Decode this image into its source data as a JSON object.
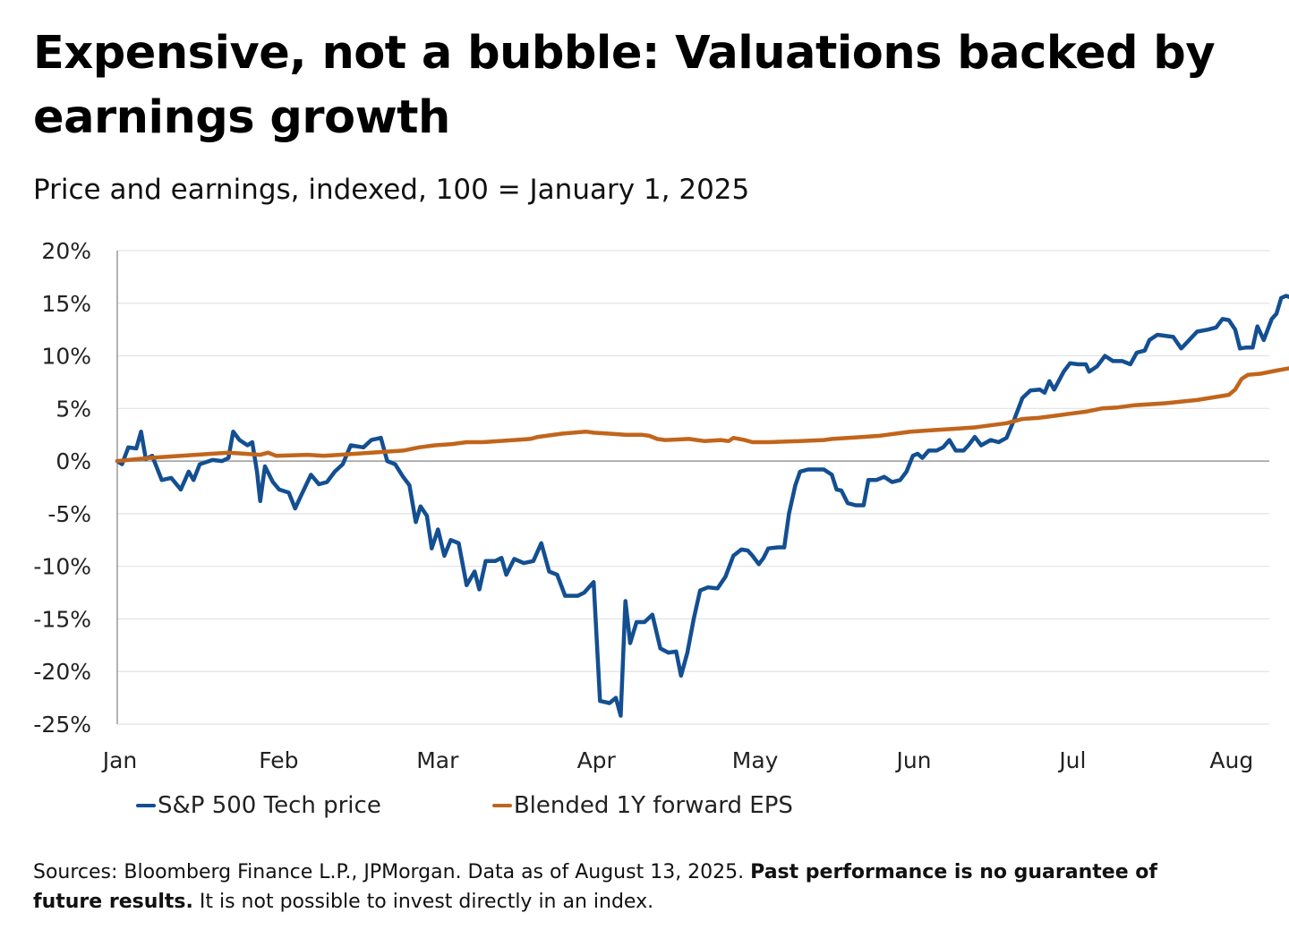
{
  "title": "Expensive, not a bubble: Valuations backed by earnings growth",
  "subtitle": "Price and earnings, indexed, 100 = January 1, 2025",
  "legend": {
    "series1_label": "S&P 500 Tech price",
    "series2_label": "Blended 1Y forward EPS"
  },
  "footer": {
    "sources": "Sources: Bloomberg Finance L.P., JPMorgan. Data as of August 13, 2025. ",
    "disclaimer_bold": "Past performance is no guarantee of future results.",
    "disclaimer_rest": " It is not possible to invest directly in an index."
  },
  "colors": {
    "series1": "#134f91",
    "series2": "#c1651c",
    "gridline": "#e2e2e2",
    "zero_line": "#9a9a9a",
    "axis": "#9a9a9a",
    "text": "#222222"
  },
  "chart_data": {
    "type": "line",
    "title": "Expensive, not a bubble: Valuations backed by earnings growth",
    "subtitle": "Price and earnings, indexed, 100 = January 1, 2025",
    "xlabel": "",
    "ylabel": "",
    "x_unit": "months elapsed since January 1, 2025",
    "xlim": [
      0,
      7.45
    ],
    "ylim": [
      -25,
      20
    ],
    "grid": true,
    "legend_position": "bottom-left",
    "y_ticks": [
      20,
      15,
      10,
      5,
      0,
      -5,
      -10,
      -15,
      -20,
      -25
    ],
    "y_tick_labels": [
      "20%",
      "15%",
      "10%",
      "5%",
      "0%",
      "-5%",
      "-10%",
      "-15%",
      "-20%",
      "-25%"
    ],
    "x_ticks": [
      0,
      1,
      2,
      3,
      4,
      5,
      6,
      7
    ],
    "x_tick_labels": [
      "Jan",
      "Feb",
      "Mar",
      "Apr",
      "May",
      "Jun",
      "Jul",
      "Aug"
    ],
    "series": [
      {
        "name": "S&P 500 Tech price",
        "color": "#134f91",
        "points": [
          [
            0.0,
            0.0
          ],
          [
            0.03,
            -0.3
          ],
          [
            0.07,
            1.3
          ],
          [
            0.12,
            1.2
          ],
          [
            0.15,
            2.8
          ],
          [
            0.18,
            0.2
          ],
          [
            0.22,
            0.5
          ],
          [
            0.28,
            -1.8
          ],
          [
            0.34,
            -1.6
          ],
          [
            0.4,
            -2.7
          ],
          [
            0.45,
            -1.0
          ],
          [
            0.48,
            -1.8
          ],
          [
            0.52,
            -0.3
          ],
          [
            0.6,
            0.1
          ],
          [
            0.66,
            0.0
          ],
          [
            0.7,
            0.3
          ],
          [
            0.73,
            2.8
          ],
          [
            0.77,
            2.0
          ],
          [
            0.82,
            1.5
          ],
          [
            0.85,
            1.8
          ],
          [
            0.88,
            -1.0
          ],
          [
            0.9,
            -3.8
          ],
          [
            0.93,
            -0.5
          ],
          [
            0.98,
            -2.0
          ],
          [
            1.02,
            -2.7
          ],
          [
            1.08,
            -3.0
          ],
          [
            1.12,
            -4.5
          ],
          [
            1.16,
            -3.2
          ],
          [
            1.22,
            -1.3
          ],
          [
            1.27,
            -2.2
          ],
          [
            1.32,
            -2.0
          ],
          [
            1.37,
            -1.0
          ],
          [
            1.42,
            -0.3
          ],
          [
            1.47,
            1.5
          ],
          [
            1.55,
            1.3
          ],
          [
            1.6,
            2.0
          ],
          [
            1.66,
            2.2
          ],
          [
            1.7,
            0.0
          ],
          [
            1.75,
            -0.3
          ],
          [
            1.8,
            -1.5
          ],
          [
            1.84,
            -2.3
          ],
          [
            1.88,
            -5.8
          ],
          [
            1.91,
            -4.3
          ],
          [
            1.95,
            -5.2
          ],
          [
            1.98,
            -8.3
          ],
          [
            2.02,
            -6.5
          ],
          [
            2.06,
            -9.0
          ],
          [
            2.1,
            -7.5
          ],
          [
            2.15,
            -7.8
          ],
          [
            2.2,
            -11.8
          ],
          [
            2.25,
            -10.5
          ],
          [
            2.28,
            -12.2
          ],
          [
            2.32,
            -9.5
          ],
          [
            2.38,
            -9.5
          ],
          [
            2.42,
            -9.2
          ],
          [
            2.45,
            -10.8
          ],
          [
            2.5,
            -9.3
          ],
          [
            2.56,
            -9.7
          ],
          [
            2.62,
            -9.5
          ],
          [
            2.67,
            -7.8
          ],
          [
            2.72,
            -10.5
          ],
          [
            2.77,
            -10.8
          ],
          [
            2.82,
            -12.8
          ],
          [
            2.9,
            -12.8
          ],
          [
            2.94,
            -12.5
          ],
          [
            3.0,
            -11.5
          ],
          [
            3.04,
            -22.8
          ],
          [
            3.1,
            -23.0
          ],
          [
            3.14,
            -22.5
          ],
          [
            3.17,
            -24.2
          ],
          [
            3.2,
            -13.3
          ],
          [
            3.23,
            -17.3
          ],
          [
            3.27,
            -15.3
          ],
          [
            3.32,
            -15.3
          ],
          [
            3.37,
            -14.6
          ],
          [
            3.42,
            -17.8
          ],
          [
            3.47,
            -18.2
          ],
          [
            3.52,
            -18.1
          ],
          [
            3.55,
            -20.4
          ],
          [
            3.59,
            -18.2
          ],
          [
            3.63,
            -15.0
          ],
          [
            3.67,
            -12.3
          ],
          [
            3.72,
            -12.0
          ],
          [
            3.78,
            -12.1
          ],
          [
            3.83,
            -11.0
          ],
          [
            3.88,
            -9.0
          ],
          [
            3.93,
            -8.4
          ],
          [
            3.97,
            -8.5
          ],
          [
            4.0,
            -9.0
          ],
          [
            4.04,
            -9.8
          ],
          [
            4.07,
            -9.2
          ],
          [
            4.1,
            -8.3
          ],
          [
            4.16,
            -8.2
          ],
          [
            4.2,
            -8.2
          ],
          [
            4.23,
            -5.0
          ],
          [
            4.27,
            -2.3
          ],
          [
            4.3,
            -1.0
          ],
          [
            4.35,
            -0.8
          ],
          [
            4.45,
            -0.8
          ],
          [
            4.5,
            -1.3
          ],
          [
            4.53,
            -2.7
          ],
          [
            4.56,
            -2.8
          ],
          [
            4.6,
            -4.0
          ],
          [
            4.65,
            -4.2
          ],
          [
            4.7,
            -4.2
          ],
          [
            4.73,
            -1.8
          ],
          [
            4.78,
            -1.8
          ],
          [
            4.83,
            -1.5
          ],
          [
            4.88,
            -2.0
          ],
          [
            4.93,
            -1.8
          ],
          [
            4.97,
            -1.0
          ],
          [
            5.01,
            0.5
          ],
          [
            5.04,
            0.7
          ],
          [
            5.07,
            0.3
          ],
          [
            5.11,
            1.0
          ],
          [
            5.16,
            1.0
          ],
          [
            5.2,
            1.3
          ],
          [
            5.24,
            2.0
          ],
          [
            5.28,
            1.0
          ],
          [
            5.33,
            1.0
          ],
          [
            5.36,
            1.5
          ],
          [
            5.4,
            2.3
          ],
          [
            5.44,
            1.5
          ],
          [
            5.5,
            2.0
          ],
          [
            5.55,
            1.8
          ],
          [
            5.6,
            2.2
          ],
          [
            5.65,
            4.0
          ],
          [
            5.7,
            6.0
          ],
          [
            5.75,
            6.7
          ],
          [
            5.81,
            6.8
          ],
          [
            5.84,
            6.5
          ],
          [
            5.87,
            7.6
          ],
          [
            5.9,
            6.8
          ],
          [
            5.96,
            8.5
          ],
          [
            6.0,
            9.3
          ],
          [
            6.05,
            9.2
          ],
          [
            6.1,
            9.2
          ],
          [
            6.12,
            8.5
          ],
          [
            6.17,
            9.0
          ],
          [
            6.22,
            10.0
          ],
          [
            6.27,
            9.5
          ],
          [
            6.33,
            9.5
          ],
          [
            6.38,
            9.2
          ],
          [
            6.42,
            10.3
          ],
          [
            6.47,
            10.5
          ],
          [
            6.5,
            11.5
          ],
          [
            6.55,
            12.0
          ],
          [
            6.65,
            11.8
          ],
          [
            6.7,
            10.7
          ],
          [
            6.75,
            11.5
          ],
          [
            6.8,
            12.3
          ],
          [
            6.87,
            12.5
          ],
          [
            6.92,
            12.7
          ],
          [
            6.96,
            13.5
          ],
          [
            7.0,
            13.4
          ],
          [
            7.04,
            12.5
          ],
          [
            7.07,
            10.7
          ],
          [
            7.11,
            10.8
          ],
          [
            7.15,
            10.8
          ],
          [
            7.18,
            12.8
          ],
          [
            7.22,
            11.5
          ],
          [
            7.27,
            13.5
          ],
          [
            7.3,
            14.0
          ],
          [
            7.33,
            15.5
          ],
          [
            7.36,
            15.7
          ],
          [
            7.4,
            15.5
          ],
          [
            7.42,
            14.8
          ],
          [
            7.45,
            16.5
          ],
          [
            7.48,
            15.8
          ]
        ]
      },
      {
        "name": "Blended 1Y forward EPS",
        "color": "#c1651c",
        "points": [
          [
            0.0,
            0.0
          ],
          [
            0.2,
            0.3
          ],
          [
            0.4,
            0.5
          ],
          [
            0.6,
            0.7
          ],
          [
            0.7,
            0.8
          ],
          [
            0.8,
            0.7
          ],
          [
            0.9,
            0.6
          ],
          [
            0.95,
            0.8
          ],
          [
            1.0,
            0.5
          ],
          [
            1.2,
            0.6
          ],
          [
            1.3,
            0.5
          ],
          [
            1.4,
            0.6
          ],
          [
            1.6,
            0.8
          ],
          [
            1.8,
            1.0
          ],
          [
            1.9,
            1.3
          ],
          [
            2.0,
            1.5
          ],
          [
            2.1,
            1.6
          ],
          [
            2.2,
            1.8
          ],
          [
            2.3,
            1.8
          ],
          [
            2.5,
            2.0
          ],
          [
            2.6,
            2.1
          ],
          [
            2.65,
            2.3
          ],
          [
            2.8,
            2.6
          ],
          [
            2.95,
            2.8
          ],
          [
            3.0,
            2.7
          ],
          [
            3.1,
            2.6
          ],
          [
            3.2,
            2.5
          ],
          [
            3.3,
            2.5
          ],
          [
            3.35,
            2.4
          ],
          [
            3.4,
            2.1
          ],
          [
            3.45,
            2.0
          ],
          [
            3.6,
            2.1
          ],
          [
            3.7,
            1.9
          ],
          [
            3.8,
            2.0
          ],
          [
            3.85,
            1.9
          ],
          [
            3.88,
            2.2
          ],
          [
            3.95,
            2.0
          ],
          [
            4.0,
            1.8
          ],
          [
            4.1,
            1.8
          ],
          [
            4.3,
            1.9
          ],
          [
            4.45,
            2.0
          ],
          [
            4.5,
            2.1
          ],
          [
            4.7,
            2.3
          ],
          [
            4.8,
            2.4
          ],
          [
            4.85,
            2.5
          ],
          [
            4.9,
            2.6
          ],
          [
            5.0,
            2.8
          ],
          [
            5.1,
            2.9
          ],
          [
            5.3,
            3.1
          ],
          [
            5.4,
            3.2
          ],
          [
            5.45,
            3.3
          ],
          [
            5.6,
            3.6
          ],
          [
            5.7,
            4.0
          ],
          [
            5.8,
            4.1
          ],
          [
            5.9,
            4.3
          ],
          [
            6.0,
            4.5
          ],
          [
            6.1,
            4.7
          ],
          [
            6.2,
            5.0
          ],
          [
            6.3,
            5.1
          ],
          [
            6.4,
            5.3
          ],
          [
            6.6,
            5.5
          ],
          [
            6.8,
            5.8
          ],
          [
            7.0,
            6.3
          ],
          [
            7.04,
            6.8
          ],
          [
            7.08,
            7.8
          ],
          [
            7.12,
            8.2
          ],
          [
            7.2,
            8.3
          ],
          [
            7.3,
            8.6
          ],
          [
            7.45,
            9.0
          ],
          [
            7.48,
            9.1
          ]
        ]
      }
    ]
  }
}
